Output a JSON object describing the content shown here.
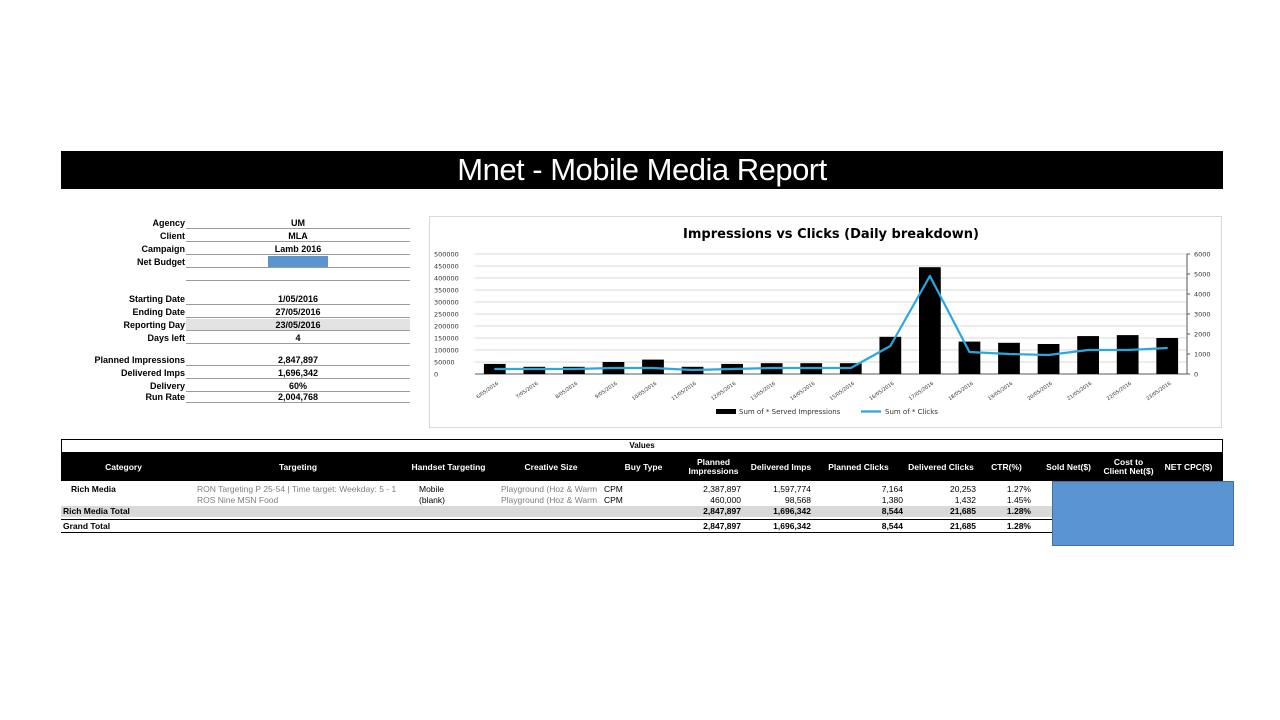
{
  "report": {
    "title": "Mnet - Mobile Media Report"
  },
  "summary": [
    {
      "label": "Agency",
      "value": "UM"
    },
    {
      "label": "Client",
      "value": "MLA"
    },
    {
      "label": "Campaign",
      "value": "Lamb 2016"
    },
    {
      "label": "Net Budget",
      "value": ""
    },
    {
      "label": "",
      "value": ""
    },
    {
      "label": "Starting Date",
      "value": "1/05/2016"
    },
    {
      "label": "Ending Date",
      "value": "27/05/2016"
    },
    {
      "label": "Reporting Day",
      "value": "23/05/2016"
    },
    {
      "label": "Days left",
      "value": "4"
    },
    {
      "label": "Planned Impressions",
      "value": "2,847,897"
    },
    {
      "label": "Delivered Imps",
      "value": "1,696,342"
    },
    {
      "label": "Delivery",
      "value": "60%"
    },
    {
      "label": "Run Rate",
      "value": "2,004,768"
    }
  ],
  "colors": {
    "bar": "#000000",
    "line": "#29a8e0",
    "overlay": "#5b95d1"
  },
  "chart_data": {
    "type": "bar",
    "title": "Impressions vs Clicks (Daily breakdown)",
    "categories": [
      "6/05/2016",
      "7/05/2016",
      "8/05/2016",
      "9/05/2016",
      "10/05/2016",
      "11/05/2016",
      "12/05/2016",
      "13/05/2016",
      "14/05/2016",
      "15/05/2016",
      "16/05/2016",
      "17/05/2016",
      "18/05/2016",
      "19/05/2016",
      "20/05/2016",
      "21/05/2016",
      "22/05/2016",
      "23/05/2016"
    ],
    "series": [
      {
        "name": "Sum of * Served Impressions",
        "type": "bar",
        "axis": "left",
        "values": [
          42000,
          30000,
          30000,
          50000,
          60000,
          30000,
          42000,
          45000,
          45000,
          45000,
          155000,
          445000,
          135000,
          130000,
          125000,
          158000,
          162000,
          150000
        ]
      },
      {
        "name": "Sum of * Clicks",
        "type": "line",
        "axis": "right",
        "values": [
          250,
          250,
          250,
          300,
          300,
          200,
          250,
          300,
          300,
          300,
          1400,
          4900,
          1100,
          1000,
          950,
          1200,
          1200,
          1300
        ]
      }
    ],
    "ylim_left": [
      0,
      500000
    ],
    "yticks_left": [
      "0",
      "50000",
      "100000",
      "150000",
      "200000",
      "250000",
      "300000",
      "350000",
      "400000",
      "450000",
      "500000"
    ],
    "ylim_right": [
      0,
      6000
    ],
    "yticks_right": [
      "0",
      "1000",
      "2000",
      "3000",
      "4000",
      "5000",
      "6000"
    ],
    "legend": "bottom",
    "grid": true
  },
  "pivot": {
    "values_label": "Values",
    "headers": [
      "Category",
      "Targeting",
      "Handset Targeting",
      "Creative Size",
      "Buy Type",
      "Planned Impressions",
      "Delivered Imps",
      "Planned Clicks",
      "Delivered Clicks",
      "CTR(%)",
      "Sold Net($)",
      "Cost to Client Net($)",
      "NET CPC($)"
    ],
    "rows": [
      {
        "category": "Rich Media",
        "targeting": "RON Targeting P 25-54 | Time target: Weekday: 5 - 1",
        "handset": "Mobile",
        "creative": "Playground (Hoz & Warm",
        "buy": "CPM",
        "planned_imps": "2,387,897",
        "delivered_imps": "1,597,774",
        "planned_clicks": "7,164",
        "delivered_clicks": "20,253",
        "ctr": "1.27%"
      },
      {
        "category": "",
        "targeting": "ROS Nine MSN Food",
        "handset": "(blank)",
        "creative": "Playground (Hoz & Warm",
        "buy": "CPM",
        "planned_imps": "460,000",
        "delivered_imps": "98,568",
        "planned_clicks": "1,380",
        "delivered_clicks": "1,432",
        "ctr": "1.45%"
      }
    ],
    "total": {
      "label": "Rich Media Total",
      "planned_imps": "2,847,897",
      "delivered_imps": "1,696,342",
      "planned_clicks": "8,544",
      "delivered_clicks": "21,685",
      "ctr": "1.28%"
    },
    "grand": {
      "label": "Grand Total",
      "planned_imps": "2,847,897",
      "delivered_imps": "1,696,342",
      "planned_clicks": "8,544",
      "delivered_clicks": "21,685",
      "ctr": "1.28%"
    }
  }
}
